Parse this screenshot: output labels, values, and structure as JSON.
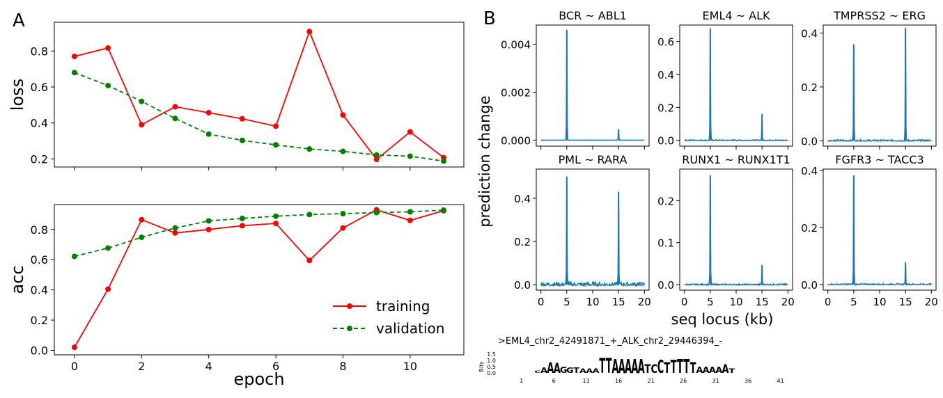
{
  "panel_a_letter": "A",
  "panel_b_letter": "B",
  "colors": {
    "training": "#ff0000",
    "validation": "#008000",
    "line_blue": "#1f77b4",
    "logo_A": "#2ca02c",
    "logo_T": "#d62728",
    "logo_C": "#1f4e9c",
    "logo_G": "#e6a817"
  },
  "chart_data": [
    {
      "id": "loss",
      "type": "line",
      "ylabel": "loss",
      "xlabel": "",
      "x": [
        0,
        1,
        2,
        3,
        4,
        5,
        6,
        7,
        8,
        9,
        10,
        11
      ],
      "xlim": [
        -0.6,
        11.6
      ],
      "ylim": [
        0.155,
        0.96
      ],
      "yticks": [
        "0.2",
        "0.4",
        "0.6",
        "0.8"
      ],
      "series": [
        {
          "name": "training",
          "values": [
            0.77,
            0.817,
            0.39,
            0.49,
            0.457,
            0.423,
            0.382,
            0.908,
            0.444,
            0.197,
            0.35,
            0.207
          ]
        },
        {
          "name": "validation",
          "values": [
            0.68,
            0.608,
            0.52,
            0.425,
            0.338,
            0.303,
            0.278,
            0.255,
            0.242,
            0.222,
            0.215,
            0.188
          ]
        }
      ]
    },
    {
      "id": "acc",
      "type": "line",
      "ylabel": "acc",
      "xlabel": "epoch",
      "x": [
        0,
        1,
        2,
        3,
        4,
        5,
        6,
        7,
        8,
        9,
        10,
        11
      ],
      "xlim": [
        -0.6,
        11.6
      ],
      "ylim": [
        -0.03,
        0.965
      ],
      "xticks": [
        "0",
        "2",
        "4",
        "6",
        "8",
        "10"
      ],
      "yticks": [
        "0.0",
        "0.2",
        "0.4",
        "0.6",
        "0.8"
      ],
      "legend": {
        "position": "lower-right",
        "entries": [
          "training",
          "validation"
        ]
      },
      "series": [
        {
          "name": "training",
          "values": [
            0.02,
            0.405,
            0.865,
            0.777,
            0.8,
            0.825,
            0.84,
            0.595,
            0.81,
            0.93,
            0.86,
            0.924
          ]
        },
        {
          "name": "validation",
          "values": [
            0.622,
            0.677,
            0.748,
            0.81,
            0.857,
            0.873,
            0.888,
            0.899,
            0.905,
            0.912,
            0.917,
            0.928
          ]
        }
      ]
    },
    {
      "id": "fusion-panels",
      "type": "line",
      "ylabel": "prediction change",
      "xlabel": "seq locus (kb)",
      "xlim": [
        -0.9,
        20.9
      ],
      "xticks": [
        "0",
        "5",
        "10",
        "15",
        "20"
      ],
      "panels": [
        {
          "title": "BCR ~ ABL1",
          "ylim": [
            -0.00025,
            0.0048
          ],
          "yticks": [
            "0.000",
            "0.002",
            "0.004"
          ],
          "peaks": [
            {
              "x": 5,
              "y": 0.0046
            },
            {
              "x": 15,
              "y": 0.00045
            }
          ],
          "noise": 0.0
        },
        {
          "title": "EML4 ~ ALK",
          "ylim": [
            -0.035,
            0.7
          ],
          "yticks": [
            "0.0",
            "0.2",
            "0.4",
            "0.6"
          ],
          "peaks": [
            {
              "x": 5,
              "y": 0.68
            },
            {
              "x": 15,
              "y": 0.16
            }
          ],
          "noise": 0.004
        },
        {
          "title": "TMPRSS2 ~ ERG",
          "ylim": [
            -0.02,
            0.43
          ],
          "yticks": [
            "0.0",
            "0.2",
            "0.4"
          ],
          "peaks": [
            {
              "x": 5,
              "y": 0.358
            },
            {
              "x": 15,
              "y": 0.42
            }
          ],
          "noise": 0.004
        },
        {
          "title": "PML ~ RARA",
          "ylim": [
            -0.025,
            0.535
          ],
          "yticks": [
            "0.0",
            "0.2",
            "0.4"
          ],
          "peaks": [
            {
              "x": 5,
              "y": 0.5
            },
            {
              "x": 15,
              "y": 0.43
            }
          ],
          "noise": 0.012
        },
        {
          "title": "RUNX1 ~ RUNX1T1",
          "ylim": [
            -0.013,
            0.275
          ],
          "yticks": [
            "0.0",
            "0.1",
            "0.2"
          ],
          "peaks": [
            {
              "x": 5,
              "y": 0.26
            },
            {
              "x": 15,
              "y": 0.047
            }
          ],
          "noise": 0.002
        },
        {
          "title": "FGFR3 ~ TACC3",
          "ylim": [
            -0.02,
            0.405
          ],
          "yticks": [
            "0.0",
            "0.2",
            "0.4"
          ],
          "peaks": [
            {
              "x": 5,
              "y": 0.383
            },
            {
              "x": 15,
              "y": 0.078
            }
          ],
          "noise": 0.003
        }
      ]
    },
    {
      "id": "sequence-logo",
      "type": "logo",
      "title": ">EML4_chr2_42491871_+_ALK_chr2_29446394_-",
      "ylabel": "Bits",
      "yticks": [
        "0.0",
        "0.5",
        "1.0",
        "1.5"
      ],
      "xticks": [
        "1",
        "6",
        "11",
        "16",
        "21",
        "26",
        "31",
        "36",
        "41"
      ],
      "letters": "....CAAAGGTAAATTAAAAATCCTTTTTAAAAAT.....",
      "heights": [
        0,
        0,
        0,
        0,
        0.2,
        0.5,
        1.0,
        0.9,
        0.6,
        0.5,
        0.5,
        0.4,
        0.4,
        0.4,
        1.4,
        1.4,
        1.3,
        1.3,
        1.3,
        1.3,
        1.3,
        0.8,
        0.8,
        1.2,
        1.0,
        1.2,
        1.3,
        1.3,
        1.0,
        0.6,
        0.6,
        0.6,
        0.6,
        0.8,
        0.4,
        0,
        0,
        0,
        0,
        0
      ]
    }
  ]
}
